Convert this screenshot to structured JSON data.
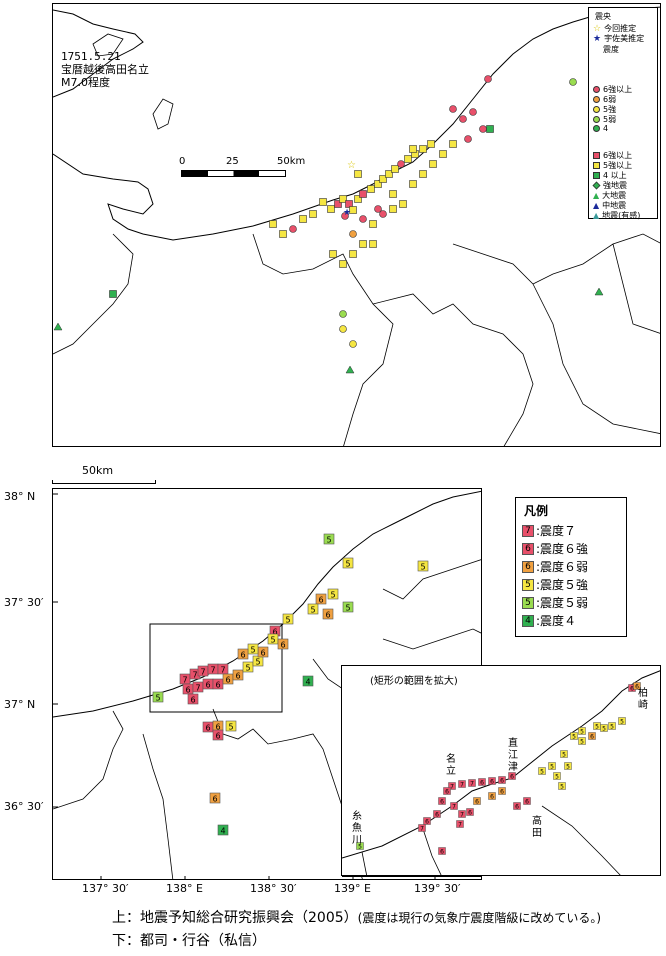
{
  "top_map": {
    "event_date": "1751.5.21",
    "event_name": "宝暦越後高田名立",
    "magnitude": "M7.0程度",
    "scale_ticks": [
      "0",
      "25",
      "50km"
    ],
    "legend": {
      "title": "震央",
      "epicenter_items": [
        {
          "label": "今回推定",
          "symbol": "star",
          "color": "#f5e642"
        },
        {
          "label": "宇佐美推定",
          "symbol": "star",
          "color": "#1a2a9a"
        }
      ],
      "intensity_title": "震度",
      "circle_items": [
        {
          "label": "6強以上",
          "color": "#e8506a"
        },
        {
          "label": "6弱",
          "color": "#f0a040"
        },
        {
          "label": "5強",
          "color": "#f5e642"
        },
        {
          "label": "5弱",
          "color": "#9adc50"
        },
        {
          "label": "4",
          "color": "#30b050"
        }
      ],
      "square_items": [
        {
          "label": "6強以上",
          "color": "#e8506a",
          "symbol": "square"
        },
        {
          "label": "5強以上",
          "color": "#f5e642",
          "symbol": "square"
        },
        {
          "label": "4 以上",
          "color": "#30b050",
          "symbol": "square"
        },
        {
          "label": "強地震",
          "color": "#30b050",
          "symbol": "diamond"
        },
        {
          "label": "大地震",
          "color": "#30b050",
          "symbol": "triangle"
        },
        {
          "label": "中地震",
          "color": "#1a2a9a",
          "symbol": "triangle"
        },
        {
          "label": "地震(有感)",
          "color": "#3a9a9a",
          "symbol": "triangle"
        }
      ]
    }
  },
  "bottom_map": {
    "scale_label": "50km",
    "lat_labels": [
      "38° N",
      "37° 30′",
      "37° N",
      "36° 30′"
    ],
    "lon_labels": [
      "137° 30′",
      "138° E",
      "138° 30′",
      "139° E",
      "139° 30′"
    ],
    "legend": {
      "title": "凡例",
      "items": [
        {
          "num": "7",
          "label": ":震度７",
          "color": "#e8506a"
        },
        {
          "num": "6",
          "label": ":震度６強",
          "color": "#e8506a"
        },
        {
          "num": "6",
          "label": ":震度６弱",
          "color": "#f0a040"
        },
        {
          "num": "5",
          "label": ":震度５強",
          "color": "#f5e642"
        },
        {
          "num": "5",
          "label": ":震度５弱",
          "color": "#9adc50"
        },
        {
          "num": "4",
          "label": ":震度４",
          "color": "#30b050"
        }
      ]
    },
    "inset": {
      "title": "(矩形の範囲を拡大)",
      "places": [
        "柏崎",
        "直江津",
        "名立",
        "高田",
        "糸魚川"
      ]
    }
  },
  "captions": {
    "line1_main": "上：地震予知総合研究振興会（2005）",
    "line1_note": "(震度は現行の気象庁震度階級に改めている。)",
    "line2": "下：都司・行谷（私信）"
  }
}
